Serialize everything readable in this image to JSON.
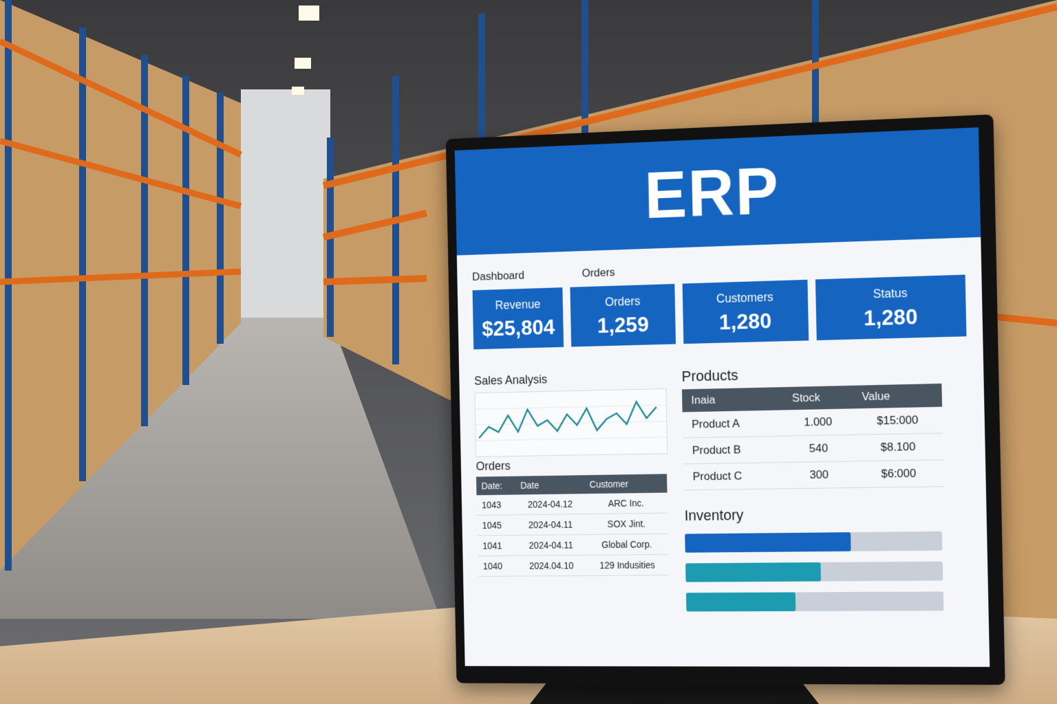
{
  "erp": {
    "title": "ERP",
    "nav": [
      "Dashboard",
      "Orders"
    ],
    "kpis": [
      {
        "label": "Revenue",
        "value": "$25,804"
      },
      {
        "label": "Orders",
        "value": "1,259"
      },
      {
        "label": "Customers",
        "value": "1,280"
      },
      {
        "label": "Status",
        "value": "1,280"
      }
    ],
    "sales_title": "Sales Analysis",
    "sales_trend": [
      3,
      5,
      4,
      7,
      4,
      8,
      5,
      6,
      4,
      7,
      5,
      8,
      4,
      6,
      7,
      5,
      9,
      6,
      8
    ],
    "orders_title": "Orders",
    "orders_headers": [
      "Date:",
      "Date",
      "Customer"
    ],
    "orders_rows": [
      [
        "1043",
        "2024-04.12",
        "ARC Inc."
      ],
      [
        "1045",
        "2024-04.11",
        "SOX Jint."
      ],
      [
        "1041",
        "2024-04.11",
        "Global Corp."
      ],
      [
        "1040",
        "2024.04.10",
        "129 Indusities"
      ]
    ],
    "products_title": "Products",
    "products_headers": [
      "Inaia",
      "Stock",
      "Value"
    ],
    "products_rows": [
      [
        "Product A",
        "1.000",
        "$15:000"
      ],
      [
        "Product B",
        "540",
        "$8.100"
      ],
      [
        "Product C",
        "300",
        "$6:000"
      ]
    ],
    "inventory_title": "Inventory",
    "inventory_levels": [
      0.65,
      0.53,
      0.43
    ],
    "colors": {
      "brand_blue": "#1565c0",
      "teal": "#1d9bb0",
      "table_header": "#4a5562",
      "shelf_orange": "#e06a1b",
      "shelf_blue": "#1f4f8f"
    }
  }
}
